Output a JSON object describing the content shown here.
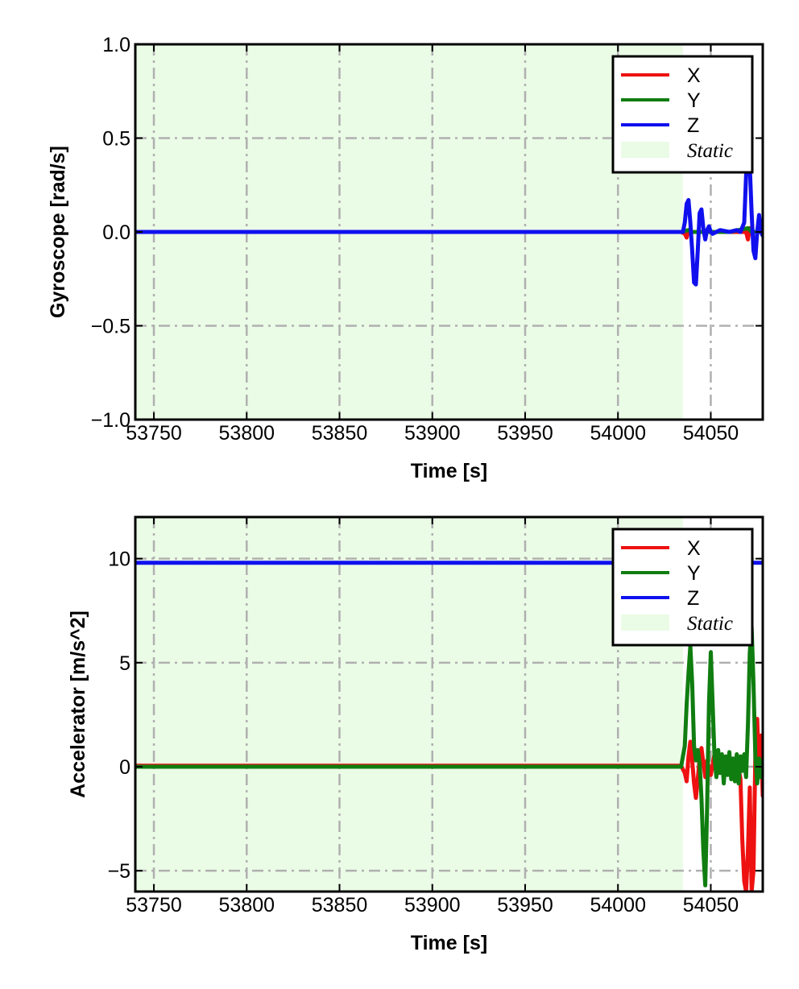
{
  "chart_data": [
    {
      "type": "line",
      "xlabel": "Time [s]",
      "ylabel": "Gyroscope [rad/s]",
      "xlim": [
        53740,
        54078
      ],
      "ylim": [
        -1.0,
        1.0
      ],
      "xticks": [
        53750,
        53800,
        53850,
        53900,
        53950,
        54000,
        54050
      ],
      "xtick_labels": [
        "53750",
        "53800",
        "53850",
        "53900",
        "53950",
        "54000",
        "54050"
      ],
      "yticks": [
        -1.0,
        -0.5,
        0.0,
        0.5,
        1.0
      ],
      "ytick_labels": [
        "−1.0",
        "−0.5",
        "0.0",
        "0.5",
        "1.0"
      ],
      "grid": true,
      "legend_position": "top-right",
      "static_region": {
        "label": "Static",
        "x_start": 53740,
        "x_end": 54035,
        "color": "#eafbe6"
      },
      "series": [
        {
          "name": "X",
          "color": "#ee1111",
          "points": [
            [
              53740,
              0
            ],
            [
              54034,
              0
            ],
            [
              54036,
              -0.01
            ],
            [
              54037,
              -0.03
            ],
            [
              54038,
              0.01
            ],
            [
              54040,
              0
            ],
            [
              54060,
              0
            ],
            [
              54069,
              0
            ],
            [
              54070,
              -0.04
            ],
            [
              54071,
              0.02
            ],
            [
              54072,
              0
            ],
            [
              54078,
              0
            ]
          ]
        },
        {
          "name": "Y",
          "color": "#107d10",
          "points": [
            [
              53740,
              0
            ],
            [
              54034,
              0
            ],
            [
              54038,
              0.01
            ],
            [
              54040,
              0
            ],
            [
              54060,
              0
            ],
            [
              54070,
              0.02
            ],
            [
              54072,
              0
            ],
            [
              54078,
              0
            ]
          ]
        },
        {
          "name": "Z",
          "color": "#1010ee",
          "points": [
            [
              53740,
              0
            ],
            [
              54035,
              0
            ],
            [
              54036,
              0.05
            ],
            [
              54037,
              0.15
            ],
            [
              54038,
              0.17
            ],
            [
              54039,
              0.05
            ],
            [
              54040,
              -0.1
            ],
            [
              54041,
              -0.27
            ],
            [
              54042,
              -0.28
            ],
            [
              54043,
              -0.1
            ],
            [
              54044,
              0.1
            ],
            [
              54045,
              0.12
            ],
            [
              54046,
              0.02
            ],
            [
              54047,
              -0.04
            ],
            [
              54048,
              0.01
            ],
            [
              54049,
              0.03
            ],
            [
              54050,
              0
            ],
            [
              54051,
              -0.01
            ],
            [
              54055,
              0.01
            ],
            [
              54060,
              0
            ],
            [
              54064,
              0.01
            ],
            [
              54066,
              0
            ],
            [
              54068,
              0.05
            ],
            [
              54069,
              0.3
            ],
            [
              54070,
              0.42
            ],
            [
              54071,
              0.35
            ],
            [
              54072,
              0.1
            ],
            [
              54073,
              -0.1
            ],
            [
              54074,
              -0.14
            ],
            [
              54075,
              0
            ],
            [
              54076,
              0.09
            ],
            [
              54077,
              0
            ],
            [
              54078,
              -0.02
            ]
          ]
        }
      ]
    },
    {
      "type": "line",
      "xlabel": "Time [s]",
      "ylabel": "Accelerator [m/s^2]",
      "xlim": [
        53740,
        54078
      ],
      "ylim": [
        -6,
        12
      ],
      "xticks": [
        53750,
        53800,
        53850,
        53900,
        53950,
        54000,
        54050
      ],
      "xtick_labels": [
        "53750",
        "53800",
        "53850",
        "53900",
        "53950",
        "54000",
        "54050"
      ],
      "yticks": [
        -5,
        0,
        5,
        10
      ],
      "ytick_labels": [
        "−5",
        "0",
        "5",
        "10"
      ],
      "grid": true,
      "legend_position": "top-right",
      "static_region": {
        "label": "Static",
        "x_start": 53740,
        "x_end": 54035,
        "color": "#eafbe6"
      },
      "series": [
        {
          "name": "X",
          "color": "#ee1111",
          "points": [
            [
              53740,
              0.05
            ],
            [
              54034,
              0.05
            ],
            [
              54036,
              -0.3
            ],
            [
              54037,
              -0.7
            ],
            [
              54038,
              0.5
            ],
            [
              54039,
              1.2
            ],
            [
              54040,
              0.3
            ],
            [
              54041,
              -0.8
            ],
            [
              54042,
              -1.5
            ],
            [
              54043,
              -0.6
            ],
            [
              54044,
              0.4
            ],
            [
              54045,
              0.9
            ],
            [
              54046,
              0.2
            ],
            [
              54047,
              -0.5
            ],
            [
              54048,
              0.3
            ],
            [
              54050,
              -0.4
            ],
            [
              54052,
              0.6
            ],
            [
              54054,
              -0.3
            ],
            [
              54056,
              0.4
            ],
            [
              54058,
              -0.2
            ],
            [
              54060,
              0.3
            ],
            [
              54062,
              -0.4
            ],
            [
              54064,
              0.5
            ],
            [
              54066,
              -0.6
            ],
            [
              54067,
              -3.5
            ],
            [
              54068,
              -5.5
            ],
            [
              54069,
              -6
            ],
            [
              54070,
              -4
            ],
            [
              54071,
              -1
            ],
            [
              54072,
              -6
            ],
            [
              54073,
              -5
            ],
            [
              54074,
              0.5
            ],
            [
              54075,
              2.3
            ],
            [
              54076,
              -0.5
            ],
            [
              54077,
              1.5
            ],
            [
              54078,
              -1.4
            ]
          ]
        },
        {
          "name": "Y",
          "color": "#107d10",
          "points": [
            [
              53740,
              0
            ],
            [
              54034,
              0
            ],
            [
              54036,
              1
            ],
            [
              54037,
              3
            ],
            [
              54038,
              4.5
            ],
            [
              54039,
              5.8
            ],
            [
              54040,
              4
            ],
            [
              54041,
              1
            ],
            [
              54042,
              0.3
            ],
            [
              54043,
              0.8
            ],
            [
              54044,
              0.2
            ],
            [
              54045,
              -1.5
            ],
            [
              54046,
              -4
            ],
            [
              54047,
              -5.7
            ],
            [
              54048,
              -2
            ],
            [
              54049,
              3
            ],
            [
              54050,
              5.5
            ],
            [
              54051,
              3
            ],
            [
              54052,
              0.5
            ],
            [
              54053,
              -0.5
            ],
            [
              54054,
              0.8
            ],
            [
              54055,
              -0.3
            ],
            [
              54056,
              0.6
            ],
            [
              54057,
              -0.8
            ],
            [
              54058,
              0.5
            ],
            [
              54059,
              -0.4
            ],
            [
              54060,
              0.7
            ],
            [
              54061,
              -0.6
            ],
            [
              54062,
              0.4
            ],
            [
              54063,
              -0.7
            ],
            [
              54064,
              0.6
            ],
            [
              54065,
              -0.8
            ],
            [
              54066,
              0.5
            ],
            [
              54067,
              -0.2
            ],
            [
              54068,
              0.6
            ],
            [
              54069,
              -0.5
            ],
            [
              54070,
              2
            ],
            [
              54071,
              5.5
            ],
            [
              54072,
              6.7
            ],
            [
              54073,
              4
            ],
            [
              54074,
              0.5
            ],
            [
              54075,
              -0.8
            ],
            [
              54076,
              0.4
            ],
            [
              54077,
              -0.5
            ],
            [
              54078,
              0.3
            ]
          ]
        },
        {
          "name": "Z",
          "color": "#1010ee",
          "points": [
            [
              53740,
              9.8
            ],
            [
              54078,
              9.8
            ]
          ]
        }
      ]
    }
  ]
}
